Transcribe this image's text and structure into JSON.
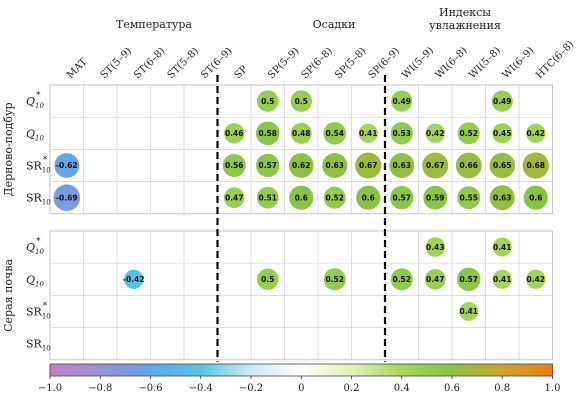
{
  "chart_data": {
    "type": "heatmap",
    "group_titles": [
      "Температура",
      "Осадки",
      "Индексы\nувлажнения"
    ],
    "columns": [
      "MAT",
      "ST(5–9)",
      "ST(6–8)",
      "ST(5–8)",
      "ST(6–9)",
      "SP",
      "SP(5–9)",
      "SP(6–8)",
      "SP(5–8)",
      "SP(6–9)",
      "WI(5–9)",
      "WI(6–8)",
      "WI(5–8)",
      "WI(6–9)",
      "HTC(6–8)"
    ],
    "panels": [
      {
        "label": "Дерново-подбур",
        "rows": [
          {
            "label": "Q",
            "sub": "10",
            "sup": "*",
            "values": [
              null,
              null,
              null,
              null,
              null,
              null,
              0.5,
              0.5,
              null,
              null,
              0.49,
              null,
              null,
              0.49,
              null
            ]
          },
          {
            "label": "Q",
            "sub": "10",
            "sup": "",
            "values": [
              null,
              null,
              null,
              null,
              null,
              0.46,
              0.58,
              0.48,
              0.54,
              0.41,
              0.53,
              0.42,
              0.52,
              0.45,
              0.42
            ]
          },
          {
            "label": "SR",
            "sub": "10",
            "sup": "*",
            "values": [
              -0.62,
              null,
              null,
              null,
              null,
              0.56,
              0.57,
              0.62,
              0.63,
              0.67,
              0.63,
              0.67,
              0.66,
              0.65,
              0.68
            ]
          },
          {
            "label": "SR",
            "sub": "10",
            "sup": "",
            "values": [
              -0.69,
              null,
              null,
              null,
              null,
              0.47,
              0.51,
              0.6,
              0.52,
              0.6,
              0.57,
              0.59,
              0.55,
              0.63,
              0.6
            ]
          }
        ]
      },
      {
        "label": "Серая почва",
        "rows": [
          {
            "label": "Q",
            "sub": "10",
            "sup": "*",
            "values": [
              null,
              null,
              null,
              null,
              null,
              null,
              null,
              null,
              null,
              null,
              null,
              0.43,
              null,
              0.41,
              null
            ]
          },
          {
            "label": "Q",
            "sub": "10",
            "sup": "",
            "values": [
              null,
              null,
              -0.42,
              null,
              null,
              null,
              0.5,
              null,
              0.52,
              null,
              0.52,
              0.47,
              0.57,
              0.41,
              0.42
            ]
          },
          {
            "label": "SR",
            "sub": "10",
            "sup": "*",
            "values": [
              null,
              null,
              null,
              null,
              null,
              null,
              null,
              null,
              null,
              null,
              null,
              null,
              0.41,
              null,
              null
            ]
          },
          {
            "label": "SR",
            "sub": "10",
            "sup": "",
            "values": [
              null,
              null,
              null,
              null,
              null,
              null,
              null,
              null,
              null,
              null,
              null,
              null,
              null,
              null,
              null
            ]
          }
        ]
      }
    ],
    "colorbar": {
      "range": [
        -1.0,
        1.0
      ],
      "ticks": [
        "−1.0",
        "−0.8",
        "−0.6",
        "−0.4",
        "−0.2",
        "0",
        "0.2",
        "0.4",
        "0.6",
        "0.8",
        "1.0"
      ],
      "colors": [
        "#c07fc4",
        "#9a8fd4",
        "#5fa6e8",
        "#59c2e6",
        "#cfe8f2",
        "#ffffff",
        "#e2f2b8",
        "#a4d65a",
        "#88c346",
        "#c9a52a",
        "#f07a14"
      ]
    }
  }
}
